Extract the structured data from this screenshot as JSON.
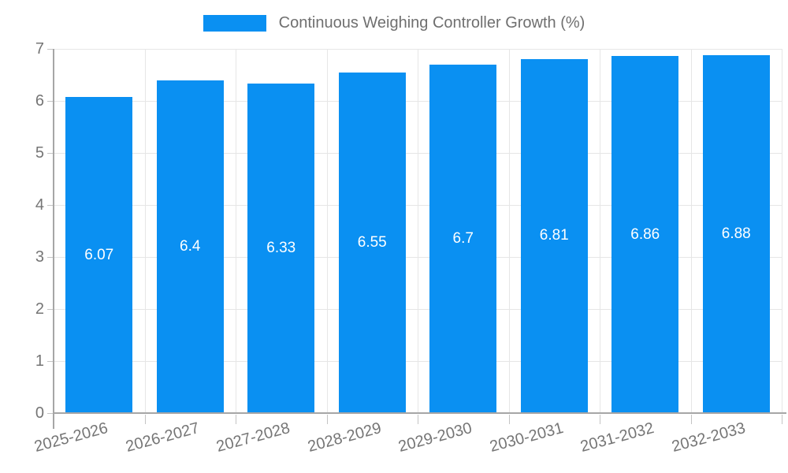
{
  "legend": {
    "label": "Continuous Weighing Controller Growth (%)"
  },
  "colors": {
    "bar": "#0a90f2",
    "axis": "#a6a6a6",
    "grid": "#e6e6e6",
    "tick": "#c4c4c4",
    "axis_label": "#757575",
    "value_label": "#ffffff"
  },
  "chart_data": {
    "type": "bar",
    "title": "Continuous Weighing Controller Growth (%)",
    "categories": [
      "2025-2026",
      "2026-2027",
      "2027-2028",
      "2028-2029",
      "2029-2030",
      "2030-2031",
      "2031-2032",
      "2032-2033"
    ],
    "values": [
      6.07,
      6.4,
      6.33,
      6.55,
      6.7,
      6.81,
      6.86,
      6.88
    ],
    "value_labels": [
      "6.07",
      "6.4",
      "6.33",
      "6.55",
      "6.7",
      "6.81",
      "6.86",
      "6.88"
    ],
    "xlabel": "",
    "ylabel": "",
    "ylim": [
      0,
      7
    ],
    "yticks": [
      0,
      1,
      2,
      3,
      4,
      5,
      6,
      7
    ],
    "grid": true,
    "legend_position": "top",
    "bar_label_position": "center"
  }
}
